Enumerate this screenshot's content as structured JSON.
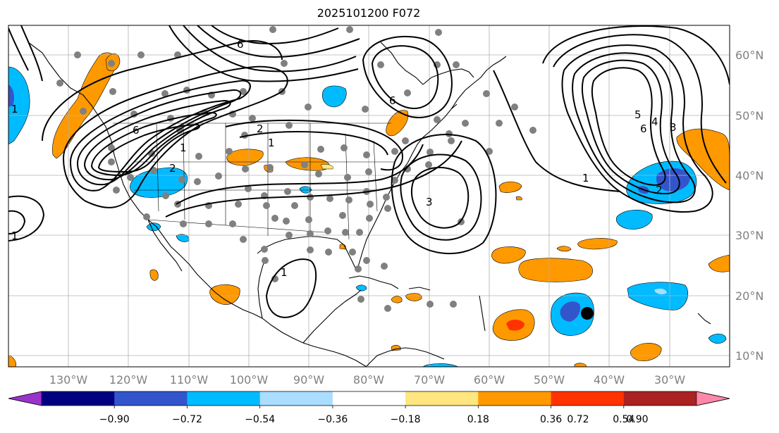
{
  "title": "2025101200 F072",
  "lat_labels": [
    "60°N",
    "50°N",
    "40°N",
    "30°N",
    "20°N",
    "10°N"
  ],
  "lon_labels": [
    "130°W",
    "120°W",
    "110°W",
    "100°W",
    "90°W",
    "80°W",
    "70°W",
    "60°W",
    "50°W",
    "40°W",
    "30°W"
  ],
  "colorbar": {
    "colors": [
      "#9933cc",
      "#000080",
      "#3355cc",
      "#00bbff",
      "#aaddff",
      "#ffffff",
      "#ffe680",
      "#ff9900",
      "#ff3300",
      "#aa2222",
      "#ff88aa"
    ],
    "tick_labels": [
      "−0.90",
      "−0.72",
      "−0.54",
      "−0.36",
      "−0.18",
      "0.18",
      "0.36",
      "0.54",
      "0.72",
      "0.90"
    ],
    "extend": "both"
  },
  "contour_labels": [
    "6",
    "6",
    "2",
    "1",
    "2",
    "1",
    "6",
    "3",
    "1",
    "5",
    "4",
    "3",
    "6",
    "2",
    "1",
    "1",
    "1"
  ],
  "colors": {
    "negative": "#00bbff",
    "negative_strong": "#3355cc",
    "positive": "#ff9900",
    "positive_strong": "#ff3300",
    "light_positive": "#ffe680",
    "station": "#808080",
    "grid": "#b0b0b0"
  }
}
